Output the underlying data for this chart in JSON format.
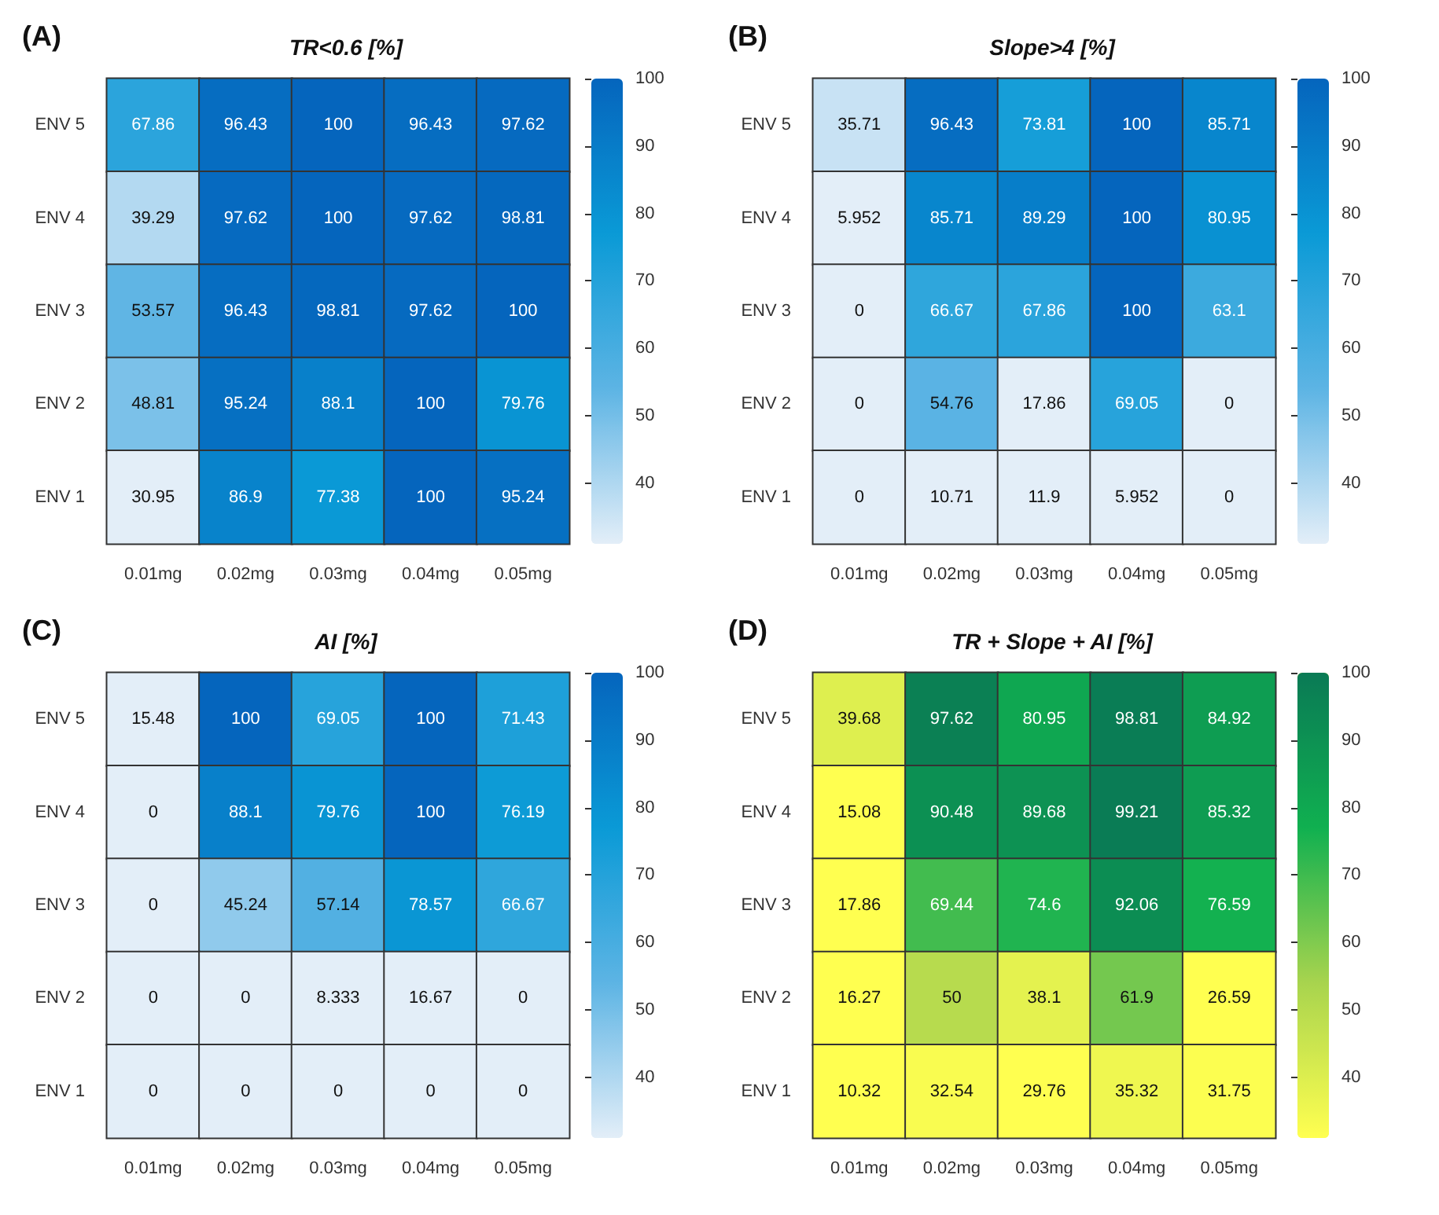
{
  "chart_data": [
    {
      "type": "heatmap",
      "title": "TR<0.6 [%]",
      "annotations": [
        "(A)"
      ],
      "categories": [
        "0.01mg",
        "0.02mg",
        "0.03mg",
        "0.04mg",
        "0.05mg"
      ],
      "y_categories": [
        "ENV 5",
        "ENV 4",
        "ENV 3",
        "ENV 2",
        "ENV 1"
      ],
      "cells": [
        [
          67.86,
          96.43,
          100,
          96.43,
          97.62
        ],
        [
          39.29,
          97.62,
          100,
          97.62,
          98.81
        ],
        [
          53.57,
          96.43,
          98.81,
          97.62,
          100
        ],
        [
          48.81,
          95.24,
          88.1,
          100,
          79.76
        ],
        [
          30.95,
          86.9,
          77.38,
          100,
          95.24
        ]
      ],
      "data_labels": true,
      "colors": [
        "#e3eef8",
        "#5db4e4",
        "#0a9ad6",
        "#0565bd"
      ],
      "clim": [
        31,
        100
      ],
      "cticks": [
        40,
        50,
        60,
        70,
        80,
        90,
        100
      ]
    },
    {
      "type": "heatmap",
      "title": "Slope>4 [%]",
      "annotations": [
        "(B)"
      ],
      "categories": [
        "0.01mg",
        "0.02mg",
        "0.03mg",
        "0.04mg",
        "0.05mg"
      ],
      "y_categories": [
        "ENV 5",
        "ENV 4",
        "ENV 3",
        "ENV 2",
        "ENV 1"
      ],
      "cells": [
        [
          35.71,
          96.43,
          73.81,
          100,
          85.71
        ],
        [
          5.952,
          85.71,
          89.29,
          100,
          80.95
        ],
        [
          0,
          66.67,
          67.86,
          100,
          63.1
        ],
        [
          0,
          54.76,
          17.86,
          69.05,
          0
        ],
        [
          0,
          10.71,
          11.9,
          5.952,
          0
        ]
      ],
      "data_labels": true,
      "colors": [
        "#e3eef8",
        "#5db4e4",
        "#0a9ad6",
        "#0565bd"
      ],
      "clim": [
        31,
        100
      ],
      "cticks": [
        40,
        50,
        60,
        70,
        80,
        90,
        100
      ]
    },
    {
      "type": "heatmap",
      "title": "AI [%]",
      "annotations": [
        "(C)"
      ],
      "categories": [
        "0.01mg",
        "0.02mg",
        "0.03mg",
        "0.04mg",
        "0.05mg"
      ],
      "y_categories": [
        "ENV 5",
        "ENV 4",
        "ENV 3",
        "ENV 2",
        "ENV 1"
      ],
      "cells": [
        [
          15.48,
          100,
          69.05,
          100,
          71.43
        ],
        [
          0,
          88.1,
          79.76,
          100,
          76.19
        ],
        [
          0,
          45.24,
          57.14,
          78.57,
          66.67
        ],
        [
          0,
          0,
          8.333,
          16.67,
          0
        ],
        [
          0,
          0,
          0,
          0,
          0
        ]
      ],
      "data_labels": true,
      "colors": [
        "#e3eef8",
        "#5db4e4",
        "#0a9ad6",
        "#0565bd"
      ],
      "clim": [
        31,
        100
      ],
      "cticks": [
        40,
        50,
        60,
        70,
        80,
        90,
        100
      ]
    },
    {
      "type": "heatmap",
      "title": "TR + Slope + AI [%]",
      "annotations": [
        "(D)"
      ],
      "categories": [
        "0.01mg",
        "0.02mg",
        "0.03mg",
        "0.04mg",
        "0.05mg"
      ],
      "y_categories": [
        "ENV 5",
        "ENV 4",
        "ENV 3",
        "ENV 2",
        "ENV 1"
      ],
      "cells": [
        [
          39.68,
          97.62,
          80.95,
          98.81,
          84.92
        ],
        [
          15.08,
          90.48,
          89.68,
          99.21,
          85.32
        ],
        [
          17.86,
          69.44,
          74.6,
          92.06,
          76.59
        ],
        [
          16.27,
          50,
          38.1,
          61.9,
          26.59
        ],
        [
          10.32,
          32.54,
          29.76,
          35.32,
          31.75
        ]
      ],
      "data_labels": true,
      "colors": [
        "#ffff50",
        "#a8d44e",
        "#10b050",
        "#0a7a55"
      ],
      "clim": [
        31,
        100
      ],
      "cticks": [
        40,
        50,
        60,
        70,
        80,
        90,
        100
      ]
    }
  ]
}
